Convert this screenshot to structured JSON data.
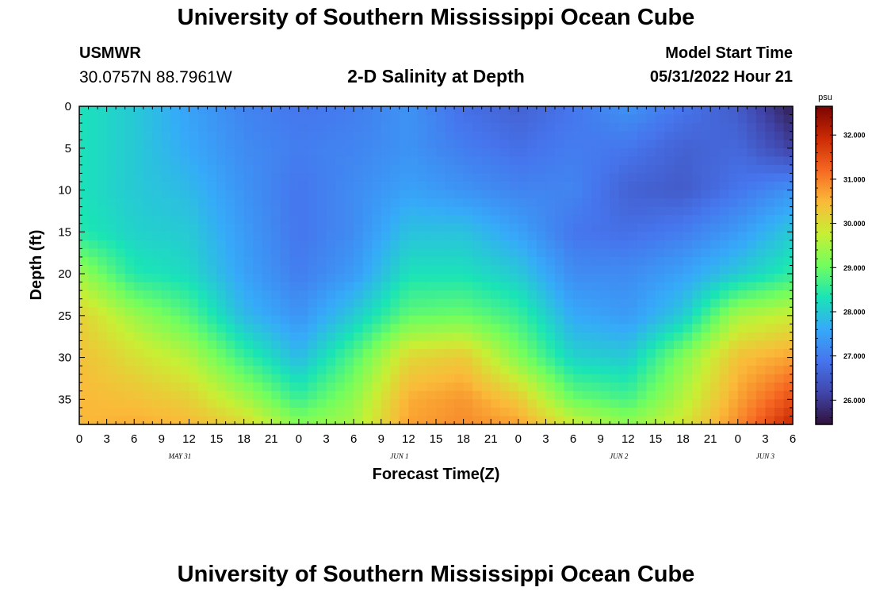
{
  "header": {
    "title": "University of Southern Mississippi Ocean Cube",
    "station": "USMWR",
    "coordinates": "30.0757N  88.7961W",
    "subtitle": "2-D Salinity at Depth",
    "model_start_label": "Model Start Time",
    "model_start_value": "05/31/2022 Hour 21"
  },
  "footer": {
    "title": "University of Southern Mississippi Ocean Cube"
  },
  "chart_data": {
    "type": "heatmap",
    "title": "2-D Salinity at Depth",
    "xlabel": "Forecast Time(Z)",
    "ylabel": "Depth (ft)",
    "x_tick_labels": [
      "0",
      "3",
      "6",
      "9",
      "12",
      "15",
      "18",
      "21",
      "0",
      "3",
      "6",
      "9",
      "12",
      "15",
      "18",
      "21",
      "0",
      "3",
      "6",
      "9",
      "12",
      "15",
      "18",
      "21",
      "0",
      "3",
      "6"
    ],
    "date_labels": [
      {
        "label": "MAY 31",
        "hour_index": 11
      },
      {
        "label": "JUN 1",
        "hour_index": 35
      },
      {
        "label": "JUN 2",
        "hour_index": 59
      },
      {
        "label": "JUN 3",
        "hour_index": 75
      }
    ],
    "xlim": [
      0,
      78
    ],
    "ylim": [
      0,
      38
    ],
    "y_ticks": [
      0,
      5,
      10,
      15,
      20,
      25,
      30,
      35
    ],
    "y_inverted": true,
    "colorbar": {
      "unit": "psu",
      "range": [
        25.45,
        32.65
      ],
      "tick_values": [
        26,
        27,
        28,
        29,
        30,
        31,
        32
      ],
      "tick_labels": [
        "26.000",
        "27.000",
        "28.000",
        "29.000",
        "30.000",
        "31.000",
        "32.000"
      ]
    },
    "grid_hours": [
      0,
      6,
      12,
      18,
      24,
      30,
      36,
      42,
      48,
      54,
      60,
      66,
      72,
      78
    ],
    "grid_depths": [
      0,
      5,
      10,
      15,
      20,
      25,
      30,
      35,
      38
    ],
    "salinity_grid_psu": [
      [
        28.3,
        28.0,
        27.5,
        27.1,
        26.9,
        27.0,
        27.3,
        26.8,
        26.6,
        26.9,
        27.3,
        26.9,
        26.5,
        25.6
      ],
      [
        28.3,
        28.0,
        27.6,
        27.2,
        27.0,
        27.1,
        27.3,
        27.0,
        26.8,
        27.0,
        26.9,
        26.6,
        26.7,
        26.1
      ],
      [
        28.3,
        28.0,
        27.8,
        27.3,
        26.9,
        27.2,
        27.5,
        27.3,
        27.1,
        27.1,
        26.6,
        26.5,
        26.9,
        27.3
      ],
      [
        28.4,
        28.1,
        28.0,
        27.4,
        26.9,
        27.2,
        27.9,
        27.9,
        27.5,
        26.9,
        26.8,
        27.0,
        27.4,
        28.0
      ],
      [
        29.4,
        28.4,
        28.2,
        27.5,
        27.0,
        27.4,
        28.3,
        28.3,
        28.0,
        27.2,
        27.2,
        27.5,
        28.0,
        28.5
      ],
      [
        30.2,
        29.4,
        28.8,
        27.8,
        27.3,
        28.0,
        28.9,
        29.0,
        28.6,
        27.6,
        27.4,
        28.0,
        29.5,
        29.8
      ],
      [
        30.4,
        30.0,
        29.6,
        28.6,
        27.8,
        28.8,
        30.1,
        30.3,
        29.2,
        28.1,
        28.0,
        29.2,
        30.4,
        30.7
      ],
      [
        30.5,
        30.4,
        30.2,
        29.5,
        28.6,
        29.3,
        30.6,
        30.8,
        30.3,
        29.0,
        28.7,
        29.6,
        30.7,
        31.5
      ],
      [
        30.5,
        30.6,
        30.5,
        30.1,
        29.2,
        29.5,
        30.7,
        30.9,
        30.7,
        29.8,
        29.3,
        29.9,
        30.9,
        32.0
      ]
    ]
  }
}
